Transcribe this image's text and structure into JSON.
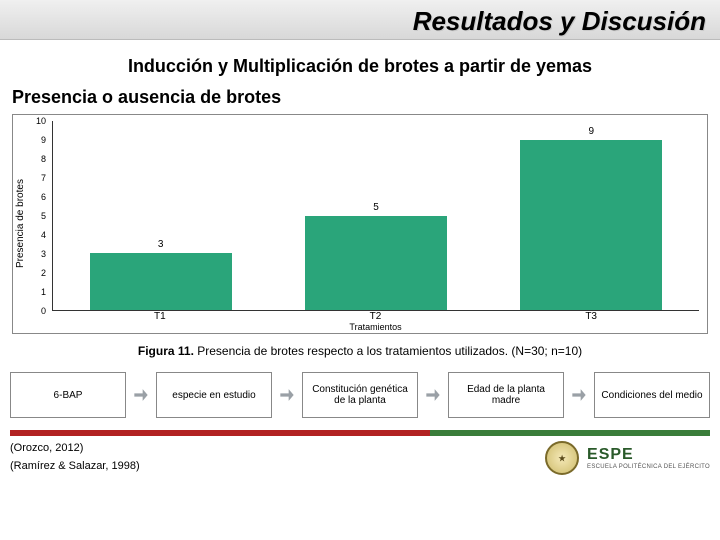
{
  "header": {
    "title": "Resultados y Discusión"
  },
  "subtitle": "Inducción y Multiplicación de brotes a partir de yemas",
  "section_heading": "Presencia o ausencia de brotes",
  "chart": {
    "type": "bar",
    "ylabel": "Presencia de brotes",
    "xlabel": "Tratamientos",
    "categories": [
      "T1",
      "T2",
      "T3"
    ],
    "values": [
      3,
      5,
      9
    ],
    "bar_color": "#2aa57a",
    "bar_width_pct": 22,
    "ylim": [
      0,
      10
    ],
    "ytick_step": 1,
    "axis_color": "#333333",
    "label_fontsize": 10,
    "tick_fontsize": 9,
    "background_color": "#ffffff",
    "border_color": "#888888"
  },
  "caption": {
    "prefix": "Figura 11.",
    "text": " Presencia de brotes respecto a los tratamientos utilizados. (N=30; n=10)"
  },
  "flow": {
    "boxes": [
      "6-BAP",
      "especie en estudio",
      "Constitución genética de la planta",
      "Edad de la planta madre",
      "Condiciones del medio"
    ],
    "arrow_color": "#9aa0a6",
    "box_border": "#888888"
  },
  "footer_bar": {
    "red": "#b22222",
    "green": "#3a7d3a"
  },
  "refs": [
    "(Orozco, 2012)",
    "(Ramírez & Salazar, 1998)"
  ],
  "logo": {
    "abbr": "ESPE",
    "sub": "ESCUELA POLITÉCNICA DEL EJÉRCITO"
  }
}
